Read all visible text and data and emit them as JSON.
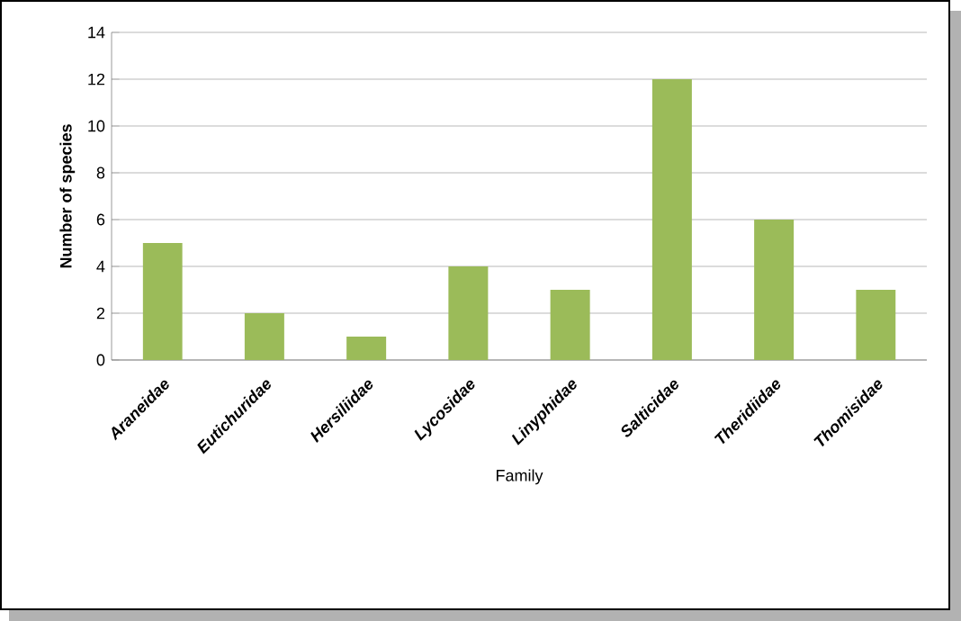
{
  "chart_data": {
    "type": "bar",
    "xlabel": "Family",
    "ylabel": "Number of species",
    "categories": [
      "Araneidae",
      "Eutichuridae",
      "Hersiliidae",
      "Lycosidae",
      "Linyphidae",
      "Salticidae",
      "Theridiidae",
      "Thomisidae"
    ],
    "values": [
      5,
      2,
      1,
      4,
      3,
      12,
      6,
      3
    ],
    "color": "#9bbb59",
    "ylim": [
      0,
      14
    ],
    "yticks": [
      0,
      2,
      4,
      6,
      8,
      10,
      12,
      14
    ],
    "grid": "y"
  }
}
